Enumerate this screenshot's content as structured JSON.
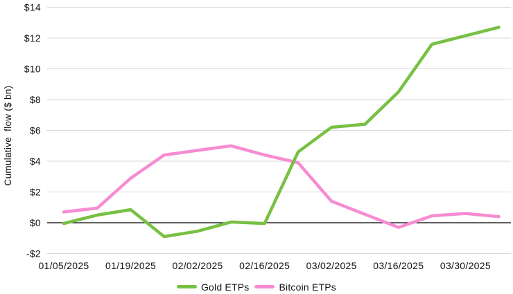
{
  "chart_data": {
    "type": "line",
    "title": "",
    "xlabel": "",
    "ylabel": "Cumulative  flow ($ bn)",
    "x": [
      "01/05/2025",
      "01/12/2025",
      "01/19/2025",
      "01/26/2025",
      "02/02/2025",
      "02/09/2025",
      "02/16/2025",
      "02/23/2025",
      "03/02/2025",
      "03/09/2025",
      "03/16/2025",
      "03/23/2025",
      "03/30/2025",
      "04/06/2025"
    ],
    "x_tick_labels": [
      "01/05/2025",
      "01/19/2025",
      "02/02/2025",
      "02/16/2025",
      "03/02/2025",
      "03/16/2025",
      "03/30/2025"
    ],
    "y_ticks": [
      -2,
      0,
      2,
      4,
      6,
      8,
      10,
      12,
      14
    ],
    "y_tick_prefix": "$",
    "ylim": [
      -2,
      14
    ],
    "grid": true,
    "grid_color": "#d9d9d9",
    "zero_line_color": "#000000",
    "legend_position": "bottom",
    "series": [
      {
        "name": "Gold ETPs",
        "color": "#77c043",
        "values": [
          -0.05,
          0.5,
          0.85,
          -0.9,
          -0.55,
          0.05,
          -0.05,
          4.6,
          6.2,
          6.4,
          8.5,
          11.6,
          12.15,
          12.7
        ]
      },
      {
        "name": "Bitcoin ETPs",
        "color": "#f78cd2",
        "values": [
          0.7,
          0.95,
          2.9,
          4.4,
          4.7,
          5.0,
          4.4,
          3.9,
          1.4,
          0.55,
          -0.3,
          0.45,
          0.6,
          0.4
        ]
      }
    ]
  }
}
